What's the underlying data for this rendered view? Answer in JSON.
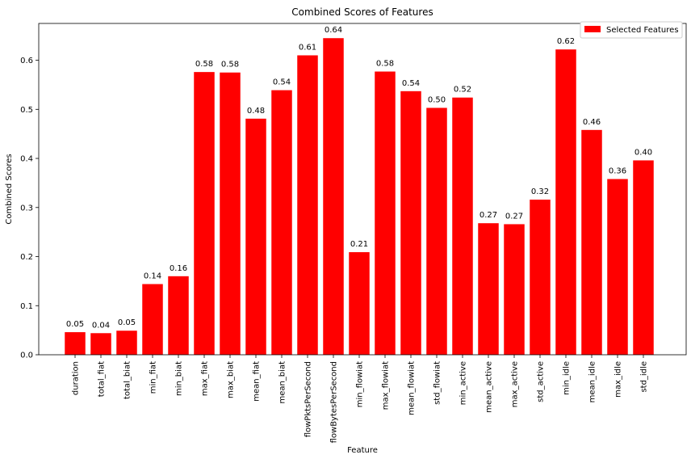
{
  "chart_data": {
    "type": "bar",
    "title": "Combined Scores of Features",
    "xlabel": "Feature",
    "ylabel": "Combined Scores",
    "ylim": [
      0,
      0.675
    ],
    "yticks": [
      "0.0",
      "0.1",
      "0.2",
      "0.3",
      "0.4",
      "0.5",
      "0.6"
    ],
    "ytick_values": [
      0.0,
      0.1,
      0.2,
      0.3,
      0.4,
      0.5,
      0.6
    ],
    "legend_position": "top-right",
    "grid": false,
    "series": [
      {
        "name": "Selected Features",
        "color": "#ff0000",
        "values": [
          0.046,
          0.044,
          0.049,
          0.144,
          0.16,
          0.576,
          0.575,
          0.481,
          0.539,
          0.61,
          0.645,
          0.209,
          0.577,
          0.537,
          0.503,
          0.524,
          0.268,
          0.266,
          0.316,
          0.622,
          0.458,
          0.358,
          0.396
        ],
        "labels": [
          "0.05",
          "0.04",
          "0.05",
          "0.14",
          "0.16",
          "0.58",
          "0.58",
          "0.48",
          "0.54",
          "0.61",
          "0.64",
          "0.21",
          "0.58",
          "0.54",
          "0.50",
          "0.52",
          "0.27",
          "0.27",
          "0.32",
          "0.62",
          "0.46",
          "0.36",
          "0.40"
        ]
      }
    ],
    "categories": [
      "duration",
      "total_fiat",
      "total_biat",
      "min_fiat",
      "min_biat",
      "max_fiat",
      "max_biat",
      "mean_fiat",
      "mean_biat",
      "flowPktsPerSecond",
      "flowBytesPerSecond",
      "min_flowiat",
      "max_flowiat",
      "mean_flowiat",
      "std_flowiat",
      "min_active",
      "mean_active",
      "max_active",
      "std_active",
      "min_idle",
      "mean_idle",
      "max_idle",
      "std_idle"
    ]
  }
}
